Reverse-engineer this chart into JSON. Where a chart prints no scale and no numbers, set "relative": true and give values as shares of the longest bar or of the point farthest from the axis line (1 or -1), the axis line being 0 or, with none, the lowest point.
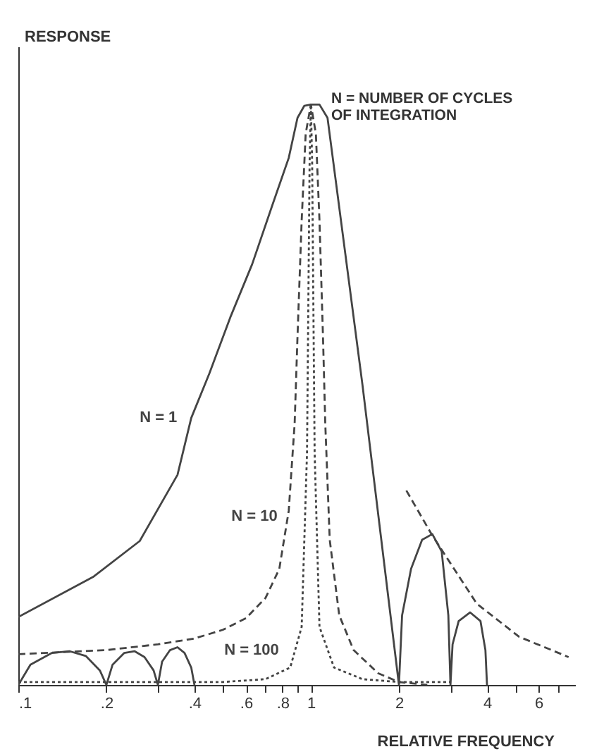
{
  "chart_data": {
    "type": "line",
    "relative": true,
    "xlabel": "RELATIVE FREQUENCY",
    "ylabel": "RESPONSE",
    "log": "x",
    "grid": false,
    "annotations": [
      "N = NUMBER OF CYCLES OF INTEGRATION"
    ],
    "xlim": [
      0.1,
      8
    ],
    "xticks": [
      {
        "value": 0.1,
        "label": ".1"
      },
      {
        "value": 0.2,
        "label": ".2"
      },
      {
        "value": 0.3,
        "label": null
      },
      {
        "value": 0.4,
        "label": ".4"
      },
      {
        "value": 0.5,
        "label": null
      },
      {
        "value": 0.6,
        "label": ".6"
      },
      {
        "value": 0.7,
        "label": null
      },
      {
        "value": 0.8,
        "label": ".8"
      },
      {
        "value": 0.9,
        "label": null
      },
      1,
      2,
      {
        "value": 3,
        "label": null
      },
      4,
      {
        "value": 5,
        "label": null
      },
      6,
      {
        "value": 7,
        "label": null
      }
    ],
    "series": [
      {
        "name": "N = 1",
        "color": "#444444",
        "line_style": "solid",
        "x": [
          0.1,
          0.18,
          0.26,
          0.35,
          0.39,
          0.45,
          0.53,
          0.63,
          0.74,
          0.84,
          0.9,
          0.95,
          1.0,
          1.07,
          1.14,
          1.5,
          2,
          2.05,
          2.2,
          2.4,
          2.6,
          2.8,
          2.95,
          3,
          3.05,
          3.2,
          3.5,
          3.8,
          3.95,
          4
        ],
        "values": [
          0.117,
          0.186,
          0.248,
          0.362,
          0.46,
          0.537,
          0.633,
          0.725,
          0.828,
          0.908,
          0.977,
          0.998,
          1,
          1,
          0.977,
          0.518,
          0,
          0.12,
          0.2,
          0.25,
          0.26,
          0.23,
          0.12,
          0,
          0.07,
          0.11,
          0.125,
          0.11,
          0.06,
          0
        ]
      },
      {
        "name": "N = 10",
        "color": "#444444",
        "line_style": "dashed",
        "x": [
          0.1,
          0.2,
          0.3,
          0.4,
          0.5,
          0.6,
          0.7,
          0.78,
          0.84,
          0.88,
          0.9,
          0.93,
          0.96,
          1,
          1.04,
          1.07,
          1.1,
          1.12,
          1.16,
          1.25,
          1.4,
          1.7,
          2,
          2.5
        ],
        "values": [
          0.053,
          0.06,
          0.07,
          0.08,
          0.095,
          0.115,
          0.15,
          0.2,
          0.3,
          0.45,
          0.6,
          0.8,
          0.95,
          1,
          0.95,
          0.8,
          0.6,
          0.45,
          0.25,
          0.12,
          0.06,
          0.02,
          0.005,
          0
        ]
      },
      {
        "name": "N = 100",
        "color": "#444444",
        "line_style": "dotted",
        "x": [
          0.1,
          0.5,
          0.7,
          0.85,
          0.93,
          0.97,
          0.99,
          1,
          1.01,
          1.03,
          1.07,
          1.2,
          1.5,
          2,
          3
        ],
        "values": [
          0.005,
          0.005,
          0.01,
          0.03,
          0.1,
          0.4,
          0.9,
          1,
          0.9,
          0.4,
          0.1,
          0.03,
          0.01,
          0.005,
          0.005
        ]
      },
      {
        "color": "#444444",
        "line_style": "solid",
        "x": [
          0.1,
          0.11,
          0.13,
          0.15,
          0.17,
          0.19,
          0.2,
          0.21,
          0.23,
          0.25,
          0.27,
          0.29,
          0.3,
          0.31,
          0.33,
          0.35,
          0.37,
          0.39,
          0.4
        ],
        "values": [
          0,
          0.035,
          0.055,
          0.058,
          0.05,
          0.025,
          0,
          0.035,
          0.055,
          0.058,
          0.048,
          0.025,
          0,
          0.04,
          0.06,
          0.065,
          0.055,
          0.03,
          0
        ]
      },
      {
        "color": "#444444",
        "line_style": "dashed",
        "x": [
          2.12,
          2.59,
          3.69,
          5.15,
          7.6
        ],
        "values": [
          0.335,
          0.259,
          0.14,
          0.083,
          0.048
        ]
      }
    ]
  }
}
